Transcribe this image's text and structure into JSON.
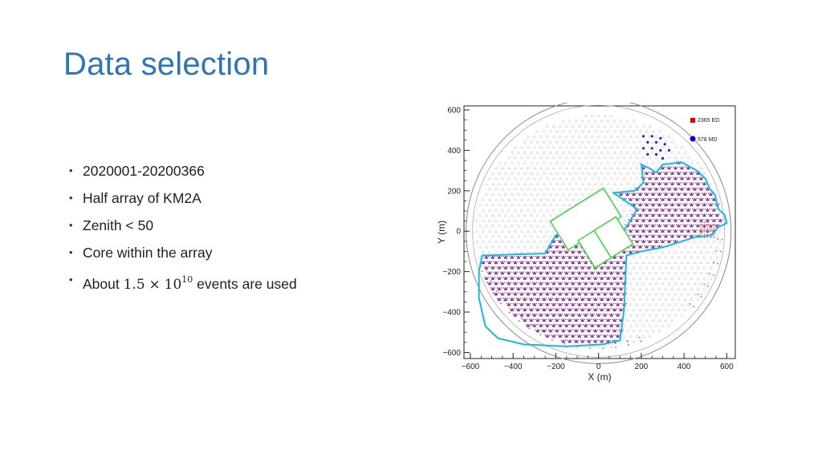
{
  "slide": {
    "title": "Data selection",
    "bullets": [
      "2020001-20200366",
      "Half array of KM2A",
      "Zenith < 50",
      "Core within the array"
    ],
    "last_bullet": {
      "prefix": "About ",
      "mantissa": "1.5",
      "times": "×",
      "base": "10",
      "exponent": "10",
      "suffix": " events are used"
    },
    "bullet_glyph": "•"
  },
  "chart_data": {
    "type": "scatter",
    "title": "",
    "xlabel": "X (m)",
    "ylabel": "Y (m)",
    "xlim": [
      -630,
      640
    ],
    "ylim": [
      -630,
      620
    ],
    "x_ticks": [
      -600,
      -400,
      -200,
      0,
      200,
      400,
      600
    ],
    "y_ticks": [
      -600,
      -400,
      -200,
      0,
      200,
      400,
      600
    ],
    "x_tick_labels": [
      "−600",
      "−400",
      "−200",
      "0",
      "200",
      "400",
      "600"
    ],
    "y_tick_labels": [
      "−600",
      "−400",
      "−200",
      "0",
      "200",
      "400",
      "600"
    ],
    "legend_position": "top-right",
    "series": [
      {
        "name": "2365 ED",
        "marker": "square",
        "color": "#e00000"
      },
      {
        "name": "578 MD",
        "marker": "circle",
        "color": "#0000e0"
      }
    ],
    "colors": {
      "ed_active": "#e84848",
      "md_active": "#2222cc",
      "inactive": "#c8c8c8",
      "boundary": "#18b8e6",
      "wcda": "#2ed33a",
      "outer_ring": "#888888"
    }
  }
}
